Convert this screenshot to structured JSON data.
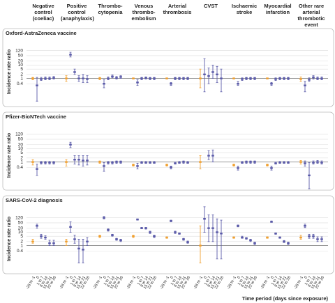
{
  "chart_data": {
    "type": "forest",
    "y_label": "Incidence rate ratio",
    "x_label": "Time period (days since exposure)",
    "categories": [
      "Negative control (coeliac)",
      "Positive control (anaphylaxis)",
      "Thrombo-cytopenia",
      "Venous thrombo-embolism",
      "Arterial thrombosis",
      "CVST",
      "Ischaemic stroke",
      "Myocardial infarction",
      "Other rare arterial thrombotic event"
    ],
    "periods": [
      "-28 to -1",
      "0",
      "1 to 7",
      "8 to 14",
      "15 to 21",
      "22 to 28"
    ],
    "period_colors": [
      "#f0a030",
      "#5a5aa8",
      "#5a5aa8",
      "#5a5aa8",
      "#5a5aa8",
      "#5a5aa8"
    ],
    "log_scale": true,
    "grid": true,
    "reference_line": 1,
    "ylim": [
      0.01,
      1000
    ],
    "yticks": [
      0.4,
      1,
      2,
      5,
      10,
      20,
      50,
      120
    ],
    "panels": [
      {
        "title": "Oxford-AstraZeneca vaccine",
        "estimate": [
          [
            1,
            0.3,
            0.9,
            1,
            1,
            1.1
          ],
          [
            1,
            60,
            3,
            1,
            1,
            0.9
          ],
          [
            1,
            0.4,
            1,
            1.4,
            1.1,
            1.3
          ],
          [
            1,
            0.5,
            1,
            1.1,
            1,
            1
          ],
          [
            1,
            0.4,
            1,
            1,
            1,
            1
          ],
          [
            1,
            2,
            1.5,
            3,
            2,
            1
          ],
          [
            1,
            0.4,
            0.9,
            1,
            1,
            1
          ],
          [
            1,
            0.4,
            0.9,
            1,
            1,
            1
          ],
          [
            0.9,
            0.3,
            0.8,
            1.2,
            1,
            1
          ]
        ],
        "lower": [
          [
            0.8,
            0.02,
            0.7,
            0.8,
            0.8,
            0.9
          ],
          [
            0.6,
            40,
            2,
            0.6,
            0.5,
            0.5
          ],
          [
            0.8,
            0.2,
            0.8,
            1.1,
            0.9,
            1
          ],
          [
            0.9,
            0.3,
            0.8,
            0.9,
            0.8,
            0.8
          ],
          [
            0.9,
            0.3,
            0.8,
            0.8,
            0.8,
            0.8
          ],
          [
            0.2,
            0.1,
            0.4,
            1,
            0.5,
            0.1
          ],
          [
            0.9,
            0.3,
            0.7,
            0.8,
            0.8,
            0.8
          ],
          [
            0.9,
            0.3,
            0.7,
            0.8,
            0.8,
            0.8
          ],
          [
            0.6,
            0.1,
            0.6,
            0.9,
            0.8,
            0.8
          ]
        ],
        "upper": [
          [
            1.2,
            1.2,
            1.2,
            1.3,
            1.3,
            1.4
          ],
          [
            1.6,
            90,
            5,
            1.6,
            2,
            1.6
          ],
          [
            1.2,
            0.8,
            1.3,
            1.8,
            1.4,
            1.6
          ],
          [
            1.1,
            0.8,
            1.2,
            1.3,
            1.2,
            1.2
          ],
          [
            1.1,
            0.5,
            1.2,
            1.2,
            1.2,
            1.2
          ],
          [
            5,
            30,
            6,
            10,
            8,
            5
          ],
          [
            1.1,
            0.6,
            1.1,
            1.2,
            1.2,
            1.2
          ],
          [
            1.1,
            0.5,
            1.1,
            1.2,
            1.2,
            1.2
          ],
          [
            1.3,
            0.6,
            1.1,
            1.6,
            1.3,
            1.3
          ]
        ]
      },
      {
        "title": "Pfizer-BioNTech vaccine",
        "estimate": [
          [
            1,
            0.3,
            0.9,
            0.9,
            0.9,
            0.9
          ],
          [
            1,
            20,
            1.5,
            1.5,
            1.3,
            1.3
          ],
          [
            1,
            0.5,
            0.9,
            0.9,
            1,
            1
          ],
          [
            0.6,
            0.5,
            0.9,
            0.9,
            0.9,
            0.9
          ],
          [
            0.6,
            0.4,
            0.8,
            0.9,
            1,
            0.9
          ],
          [
            1,
            null,
            3,
            3,
            null,
            null
          ],
          [
            0.6,
            0.35,
            0.9,
            1,
            1,
            1
          ],
          [
            0.6,
            0.35,
            0.8,
            0.9,
            0.9,
            0.9
          ],
          [
            1,
            0.8,
            0.1,
            0.9,
            1,
            0.9
          ]
        ],
        "lower": [
          [
            0.6,
            0.1,
            0.7,
            0.7,
            0.7,
            0.7
          ],
          [
            0.5,
            12,
            0.7,
            0.6,
            0.5,
            0.6
          ],
          [
            0.8,
            0.2,
            0.7,
            0.7,
            0.8,
            0.8
          ],
          [
            0.5,
            0.3,
            0.8,
            0.8,
            0.8,
            0.8
          ],
          [
            0.5,
            0.3,
            0.7,
            0.8,
            0.8,
            0.8
          ],
          [
            0.3,
            null,
            1.5,
            1,
            null,
            null
          ],
          [
            0.5,
            0.25,
            0.8,
            0.8,
            0.8,
            0.8
          ],
          [
            0.5,
            0.25,
            0.7,
            0.8,
            0.8,
            0.8
          ],
          [
            0.7,
            0.5,
            0.01,
            0.7,
            0.8,
            0.7
          ]
        ],
        "upper": [
          [
            1.5,
            0.7,
            1.1,
            1.1,
            1.1,
            1.1
          ],
          [
            1.5,
            30,
            3,
            3,
            3,
            3
          ],
          [
            1.2,
            0.9,
            1.1,
            1.1,
            1.2,
            1.2
          ],
          [
            0.7,
            0.8,
            1.1,
            1.1,
            1.1,
            1.1
          ],
          [
            0.7,
            0.5,
            1,
            1.1,
            1.2,
            1.1
          ],
          [
            3,
            null,
            7,
            8,
            null,
            null
          ],
          [
            0.7,
            0.5,
            1.1,
            1.2,
            1.2,
            1.2
          ],
          [
            0.7,
            0.5,
            1,
            1.1,
            1.1,
            1.1
          ],
          [
            1.3,
            1.2,
            0.9,
            1.2,
            1.3,
            1.2
          ]
        ]
      },
      {
        "title": "SARS-CoV-2 diagnosis",
        "estimate": [
          [
            2,
            30,
            5,
            4,
            1.5,
            1.5
          ],
          [
            2,
            25,
            3,
            0.6,
            0.5,
            2
          ],
          [
            5,
            120,
            15,
            6,
            3,
            2.5
          ],
          [
            5,
            90,
            20,
            20,
            10,
            5
          ],
          [
            4,
            70,
            10,
            8,
            3,
            1.8
          ],
          [
            1,
            100,
            20,
            20,
            10,
            8
          ],
          [
            4,
            30,
            4,
            3.5,
            2.5,
            1.5
          ],
          [
            4,
            60,
            8,
            4,
            2,
            1.5
          ],
          [
            4,
            30,
            5,
            5,
            3,
            3
          ]
        ],
        "lower": [
          [
            1.5,
            20,
            3.5,
            3,
            1,
            1
          ],
          [
            1,
            10,
            1.5,
            0.05,
            0.05,
            1
          ],
          [
            4,
            100,
            12,
            5,
            2.5,
            2
          ],
          [
            4,
            80,
            18,
            17,
            8,
            4
          ],
          [
            3.5,
            60,
            8,
            7,
            2.5,
            1.5
          ],
          [
            0.05,
            10,
            2,
            2,
            0.1,
            0.1
          ],
          [
            3.5,
            25,
            3.5,
            3,
            2,
            1.2
          ],
          [
            3.5,
            55,
            7,
            3.5,
            1.7,
            1.2
          ],
          [
            3,
            22,
            3.5,
            3.5,
            2,
            2
          ]
        ],
        "upper": [
          [
            3,
            40,
            7,
            5.5,
            2.5,
            2.5
          ],
          [
            3,
            60,
            6,
            3,
            3,
            4
          ],
          [
            6,
            150,
            18,
            7,
            3.5,
            3
          ],
          [
            6,
            100,
            23,
            23,
            12,
            6
          ],
          [
            4.5,
            80,
            12,
            9,
            3.5,
            2.2
          ],
          [
            30,
            800,
            200,
            200,
            100,
            80
          ],
          [
            4.5,
            35,
            5,
            4,
            3,
            1.8
          ],
          [
            4.5,
            70,
            9,
            4.5,
            2.4,
            1.8
          ],
          [
            6,
            40,
            7,
            7,
            4.5,
            4.5
          ]
        ]
      }
    ]
  }
}
